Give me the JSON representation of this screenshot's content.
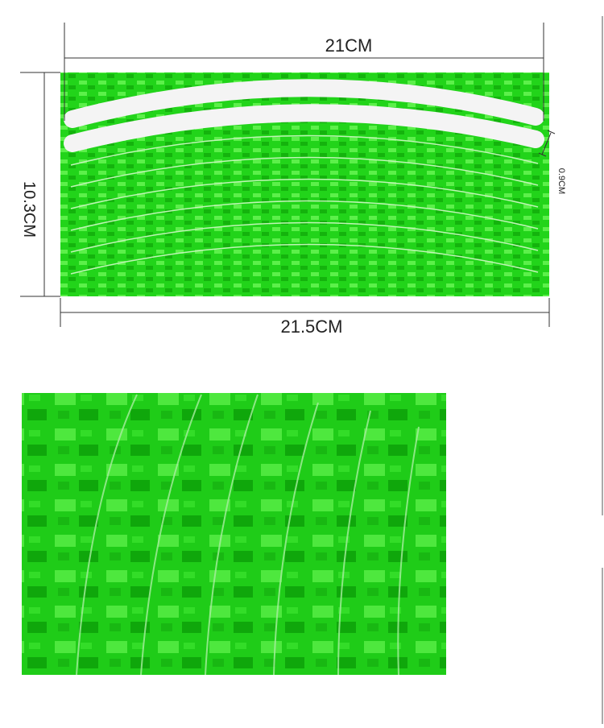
{
  "dimensions": {
    "top_width": "21CM",
    "height": "10.3CM",
    "strip_width": "0.9CM",
    "bottom_width": "21.5CM"
  }
}
